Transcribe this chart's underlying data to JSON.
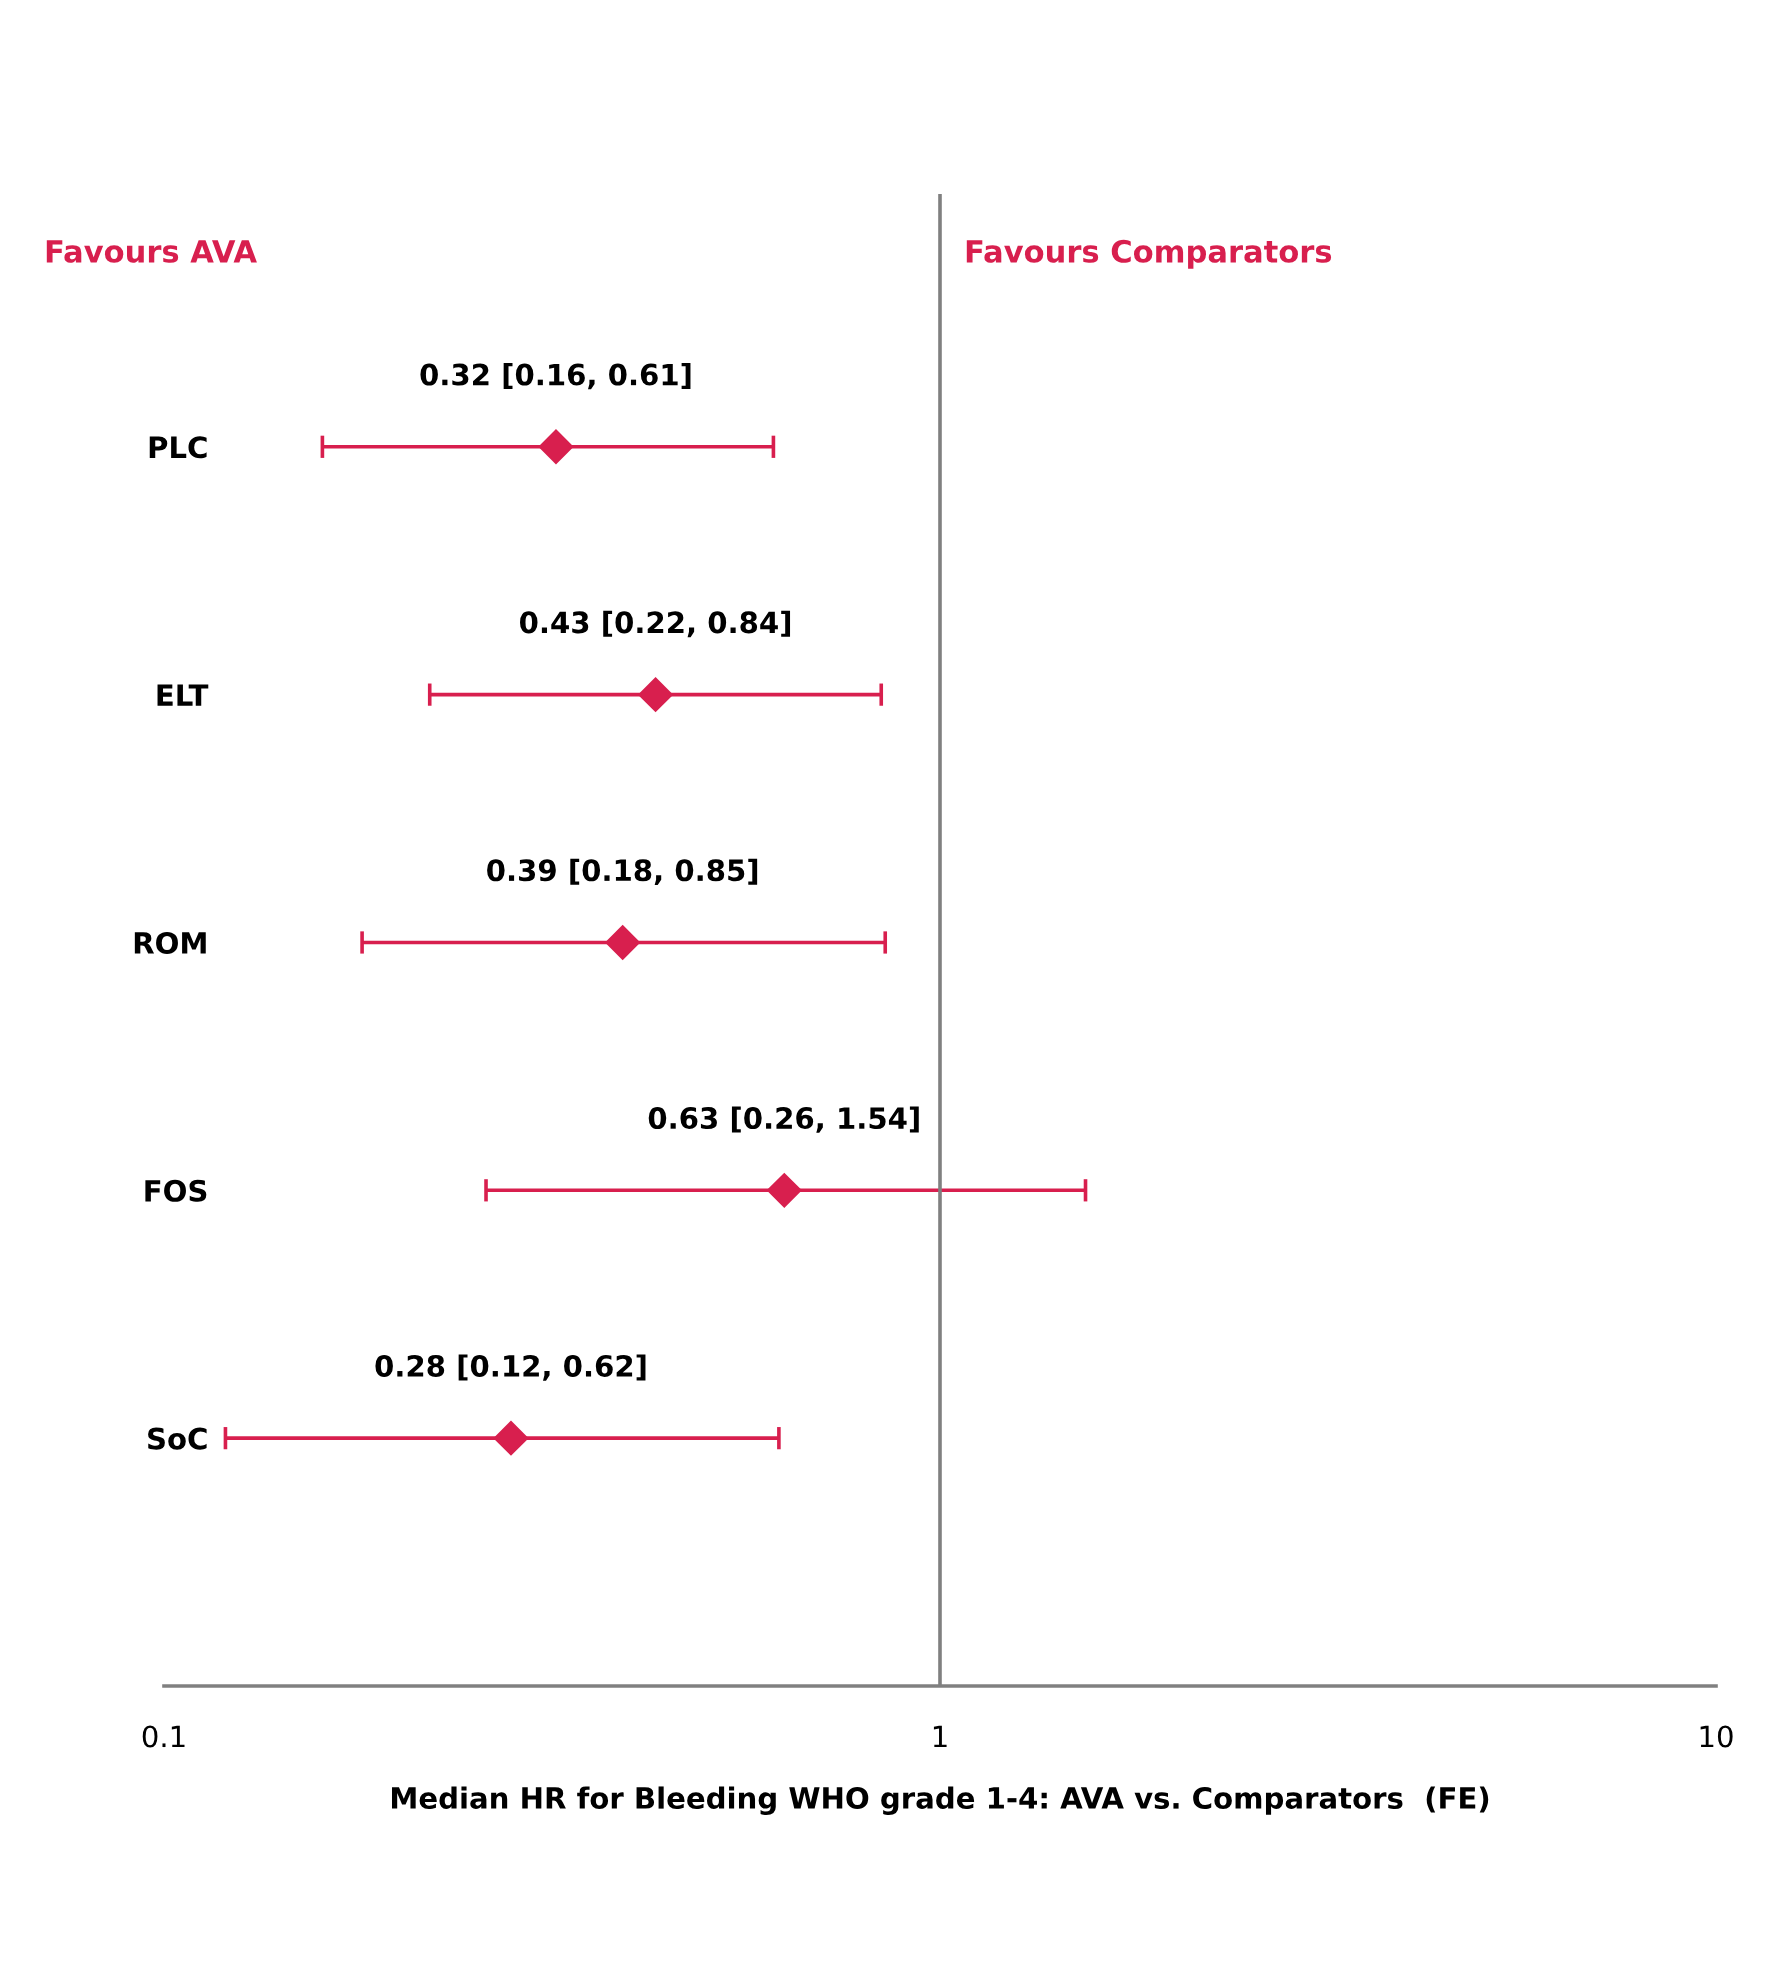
{
  "chart_data": {
    "type": "scatter",
    "orientation": "horizontal",
    "categories": [
      "PLC",
      "ELT",
      "ROM",
      "FOS",
      "SoC"
    ],
    "values": [
      0.32,
      0.43,
      0.39,
      0.63,
      0.28
    ],
    "errors": [
      [
        0.16,
        0.61
      ],
      [
        0.22,
        0.84
      ],
      [
        0.18,
        0.85
      ],
      [
        0.26,
        1.54
      ],
      [
        0.12,
        0.62
      ]
    ],
    "value_labels": [
      "0.32 [0.16, 0.61]",
      "0.43 [0.22, 0.84]",
      "0.39 [0.18, 0.85]",
      "0.63 [0.26, 1.54]",
      "0.28 [0.12, 0.62]"
    ],
    "color": "#d81f4e",
    "marker": "diamond",
    "log": "x",
    "xlim": [
      0.1,
      10
    ],
    "xticks": [
      0.1,
      1,
      10
    ],
    "xlabel": "Median HR for Bleeding WHO grade 1-4: AVA vs. Comparators  (FE)",
    "ref_lines": [
      {
        "axis": "x",
        "value": 1,
        "color": "#808080"
      }
    ],
    "annotations": [
      "Favours AVA",
      "Favours Comparators"
    ],
    "grid": false,
    "legend": false
  }
}
